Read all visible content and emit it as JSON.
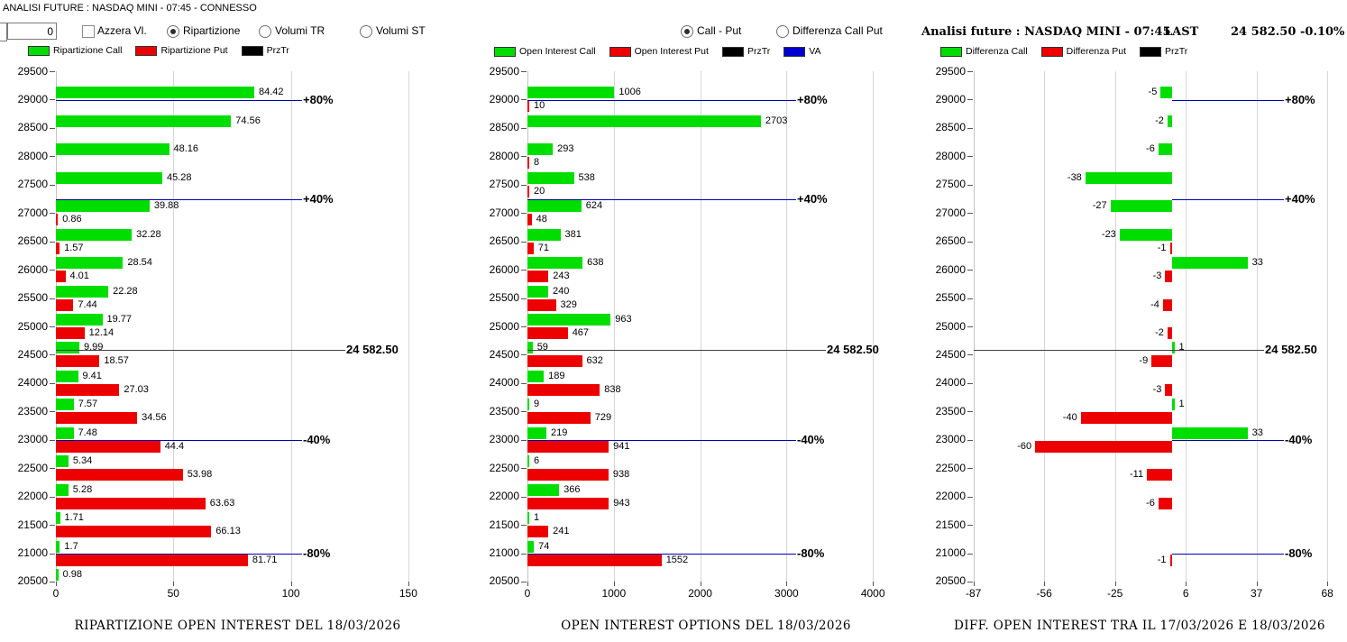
{
  "window_title": "ANALISI FUTURE : NASDAQ MINI - 07:45 - CONNESSO",
  "controls": {
    "input_value": "0",
    "azzera_label": "Azzera Vl.",
    "left_radios": [
      {
        "label": "Ripartizione",
        "selected": true
      },
      {
        "label": "Volumi TR",
        "selected": false
      },
      {
        "label": "Volumi ST",
        "selected": false
      }
    ],
    "mid_radios": [
      {
        "label": "Call - Put",
        "selected": true
      },
      {
        "label": "Differenza Call Put",
        "selected": false
      }
    ]
  },
  "header_right": {
    "title": "Analisi future : NASDAQ MINI - 07:45",
    "last_label": "LAST",
    "last_value": "24 582.50",
    "change": "-0.10%"
  },
  "legends": [
    {
      "items": [
        {
          "label": "Ripartizione Call",
          "color": "#00de00"
        },
        {
          "label": "Ripartizione Put",
          "color": "#ec0000"
        },
        {
          "label": "PrzTr",
          "color": "#000000"
        }
      ]
    },
    {
      "items": [
        {
          "label": "Open Interest Call",
          "color": "#00de00"
        },
        {
          "label": "Open Interest Put",
          "color": "#ec0000"
        },
        {
          "label": "PrzTr",
          "color": "#000000"
        },
        {
          "label": "VA",
          "color": "#0000d0"
        }
      ]
    },
    {
      "items": [
        {
          "label": "Differenza Call",
          "color": "#00de00"
        },
        {
          "label": "Differenza Put",
          "color": "#ec0000"
        },
        {
          "label": "PrzTr",
          "color": "#000000"
        }
      ]
    }
  ],
  "chart_data": [
    {
      "type": "bar",
      "orientation": "horizontal",
      "title": "RIPARTIZIONE OPEN INTEREST DEL 18/03/2026",
      "ylim": [
        20500,
        29500
      ],
      "xlim": [
        0,
        155
      ],
      "yticks": [
        "29500",
        "29000",
        "28500",
        "28000",
        "27500",
        "27000",
        "26500",
        "26000",
        "25500",
        "25000",
        "24500",
        "24000",
        "23500",
        "23000",
        "22500",
        "22000",
        "21500",
        "21000",
        "20500"
      ],
      "xticks": [
        {
          "label": "0",
          "value": 0
        },
        {
          "label": "50",
          "value": 50
        },
        {
          "label": "100",
          "value": 100
        },
        {
          "label": "150",
          "value": 150
        }
      ],
      "strikes": [
        29000,
        28500,
        28000,
        27500,
        27000,
        26500,
        26000,
        25500,
        25000,
        24500,
        24000,
        23500,
        23000,
        22500,
        22000,
        21500,
        21000,
        20500
      ],
      "series": [
        {
          "name": "Ripartizione Call",
          "color": "#00de00",
          "values": [
            "84.42",
            "74.56",
            "48.16",
            "45.28",
            "39.88",
            "32.28",
            "28.54",
            "22.28",
            "19.77",
            "9.99",
            "9.41",
            "7.57",
            "7.48",
            "5.34",
            "5.28",
            "1.71",
            "1.7",
            "0.98"
          ]
        },
        {
          "name": "Ripartizione Put",
          "color": "#ec0000",
          "values": [
            null,
            null,
            null,
            null,
            "0.86",
            "1.57",
            "4.01",
            "7.44",
            "12.14",
            "18.57",
            "27.03",
            "34.56",
            "44.4",
            "53.98",
            "63.63",
            "66.13",
            "81.71",
            null
          ]
        }
      ],
      "ref_lines": [
        {
          "label": "+80%",
          "price": 28990,
          "kind": "va"
        },
        {
          "label": "+40%",
          "price": 27235,
          "kind": "va"
        },
        {
          "label": "24 582.50",
          "price": 24582.5,
          "kind": "prz"
        },
        {
          "label": "-40%",
          "price": 22990,
          "kind": "va"
        },
        {
          "label": "-80%",
          "price": 20990,
          "kind": "va"
        }
      ]
    },
    {
      "type": "bar",
      "orientation": "horizontal",
      "title": "OPEN INTEREST OPTIONS DEL 18/03/2026",
      "ylim": [
        20500,
        29500
      ],
      "xlim": [
        0,
        4130
      ],
      "yticks": [
        "29500",
        "29000",
        "28500",
        "28000",
        "27500",
        "27000",
        "26500",
        "26000",
        "25500",
        "25000",
        "24500",
        "24000",
        "23500",
        "23000",
        "22500",
        "22000",
        "21500",
        "21000",
        "20500"
      ],
      "xticks": [
        {
          "label": "0",
          "value": 0
        },
        {
          "label": "1000",
          "value": 1000
        },
        {
          "label": "2000",
          "value": 2000
        },
        {
          "label": "3000",
          "value": 3000
        },
        {
          "label": "4000",
          "value": 4000
        }
      ],
      "strikes": [
        29000,
        28500,
        28000,
        27500,
        27000,
        26500,
        26000,
        25500,
        25000,
        24500,
        24000,
        23500,
        23000,
        22500,
        22000,
        21500,
        21000,
        20500
      ],
      "series": [
        {
          "name": "Open Interest Call",
          "color": "#00de00",
          "values": [
            "1006",
            "2703",
            "293",
            "538",
            "624",
            "381",
            "638",
            "240",
            "963",
            "59",
            "189",
            "9",
            "219",
            "6",
            "366",
            "1",
            "74",
            null
          ]
        },
        {
          "name": "Open Interest Put",
          "color": "#ec0000",
          "values": [
            "10",
            null,
            "8",
            "20",
            "48",
            "71",
            "243",
            "329",
            "467",
            "632",
            "838",
            "729",
            "941",
            "938",
            "943",
            "241",
            "1552",
            null
          ]
        }
      ],
      "ref_lines": [
        {
          "label": "+80%",
          "price": 28990,
          "kind": "va"
        },
        {
          "label": "+40%",
          "price": 27235,
          "kind": "va"
        },
        {
          "label": "24 582.50",
          "price": 24582.5,
          "kind": "prz"
        },
        {
          "label": "-40%",
          "price": 22990,
          "kind": "va"
        },
        {
          "label": "-80%",
          "price": 20990,
          "kind": "va"
        }
      ]
    },
    {
      "type": "bar",
      "orientation": "horizontal",
      "title": "DIFF. OPEN INTEREST TRA IL 17/03/2026 E 18/03/2026",
      "ylim": [
        20500,
        29500
      ],
      "xlim": [
        -87,
        68
      ],
      "yticks": [
        "29500",
        "29000",
        "28500",
        "28000",
        "27500",
        "27000",
        "26500",
        "26000",
        "25500",
        "25000",
        "24500",
        "24000",
        "23500",
        "23000",
        "22500",
        "22000",
        "21500",
        "21000",
        "20500"
      ],
      "xticks": [
        {
          "label": "-87",
          "value": -87
        },
        {
          "label": "-56",
          "value": -56
        },
        {
          "label": "-25",
          "value": -25
        },
        {
          "label": "6",
          "value": 6
        },
        {
          "label": "37",
          "value": 37
        },
        {
          "label": "68",
          "value": 68
        }
      ],
      "strikes": [
        29000,
        28500,
        28000,
        27500,
        27000,
        26500,
        26000,
        25500,
        25000,
        24500,
        24000,
        23500,
        23000,
        22500,
        22000,
        21500,
        21000,
        20500
      ],
      "series": [
        {
          "name": "Differenza Call",
          "color": "#00de00",
          "values": [
            "-5",
            "-2",
            "-6",
            "-38",
            "-27",
            "-23",
            "33",
            null,
            null,
            "1",
            null,
            "1",
            "33",
            null,
            null,
            null,
            null,
            null
          ]
        },
        {
          "name": "Differenza Put",
          "color": "#ec0000",
          "values": [
            null,
            null,
            null,
            null,
            null,
            "-1",
            "-3",
            "-4",
            "-2",
            "-9",
            "-3",
            "-40",
            "-60",
            "-11",
            "-6",
            null,
            "-1",
            null
          ]
        }
      ],
      "ref_lines": [
        {
          "label": "+80%",
          "price": 28990,
          "kind": "va"
        },
        {
          "label": "+40%",
          "price": 27235,
          "kind": "va"
        },
        {
          "label": "24 582.50",
          "price": 24582.5,
          "kind": "prz"
        },
        {
          "label": "-40%",
          "price": 22990,
          "kind": "va"
        },
        {
          "label": "-80%",
          "price": 20990,
          "kind": "va"
        }
      ]
    }
  ]
}
